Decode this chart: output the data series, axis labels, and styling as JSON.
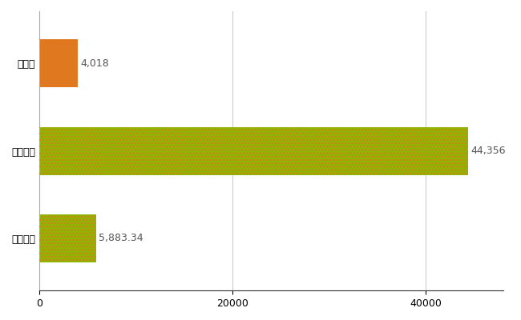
{
  "categories": [
    "全国平均",
    "全国最大",
    "新潟県"
  ],
  "values": [
    5883.34,
    44356,
    4018
  ],
  "bar_colors": [
    "#8db600",
    "#8db600",
    "#e07820"
  ],
  "hatch_colors": [
    "#e07820",
    "#e07820",
    null
  ],
  "use_hatch": [
    true,
    true,
    false
  ],
  "label_values": [
    "5,883.34",
    "44,356",
    "4,018"
  ],
  "xlim": [
    0,
    48000
  ],
  "xticks": [
    0,
    20000,
    40000
  ],
  "xtick_labels": [
    "0",
    "20000",
    "40000"
  ],
  "bar_height": 0.55,
  "figsize": [
    6.5,
    4.0
  ],
  "dpi": 100,
  "bg_color": "#ffffff",
  "grid_color": "#cccccc",
  "label_fontsize": 9,
  "tick_fontsize": 9,
  "label_color": "#555555"
}
